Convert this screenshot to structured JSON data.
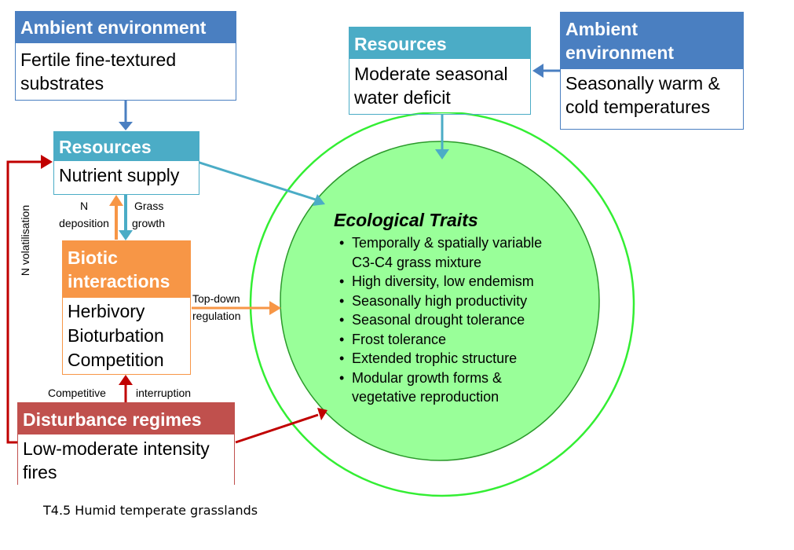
{
  "colors": {
    "ambient": "#4a7fc1",
    "resources": "#4bacc6",
    "biotic": "#f79646",
    "disturbance": "#c0504d",
    "red_arrow": "#c00000",
    "circle_fill": "#99ff99",
    "circle_outer": "#33cc33"
  },
  "ambient_left": {
    "title": "Ambient environment",
    "body": "Fertile fine-textured substrates"
  },
  "resources_left": {
    "title": "Resources",
    "body": "Nutrient supply"
  },
  "resources_top": {
    "title": "Resources",
    "body": "Moderate seasonal water deficit"
  },
  "ambient_right": {
    "title": "Ambient environment",
    "body": "Seasonally warm & cold temperatures"
  },
  "biotic": {
    "title": "Biotic interactions",
    "items": [
      "Herbivory",
      "Bioturbation",
      "Competition"
    ]
  },
  "disturbance": {
    "title": "Disturbance regimes",
    "body": "Low-moderate intensity fires"
  },
  "labels": {
    "n_deposition_1": "N",
    "n_deposition_2": "deposition",
    "grass_growth_1": "Grass",
    "grass_growth_2": "growth",
    "topdown_1": "Top-down",
    "topdown_2": "regulation",
    "competitive": "Competitive",
    "interruption": "interruption",
    "n_volatilisation": "N volatilisation"
  },
  "traits": {
    "title": "Ecological Traits",
    "items": [
      "Temporally & spatially variable C3-C4 grass mixture",
      "High diversity, low endemism",
      "Seasonally high productivity",
      "Seasonal drought tolerance",
      "Frost tolerance",
      "Extended trophic structure",
      "Modular growth forms & vegetative reproduction"
    ]
  },
  "caption": "T4.5 Humid temperate grasslands"
}
